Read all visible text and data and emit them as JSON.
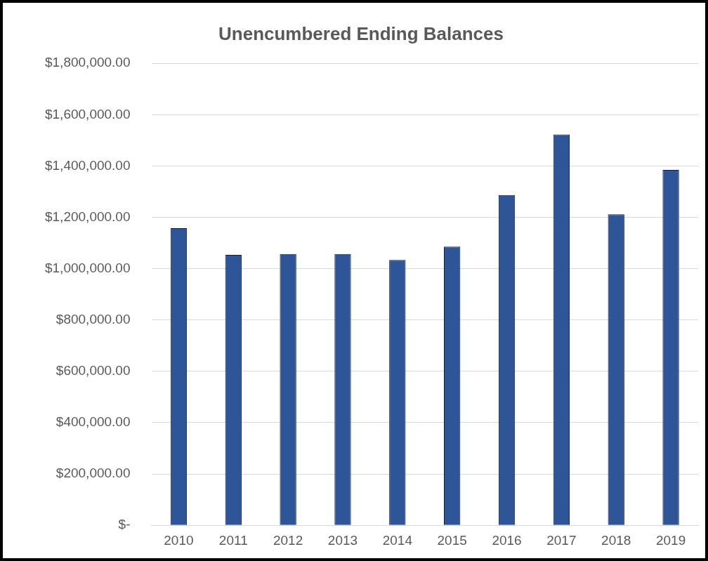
{
  "chart_data": {
    "type": "bar",
    "title": "Unencumbered Ending Balances",
    "categories": [
      "2010",
      "2011",
      "2012",
      "2013",
      "2014",
      "2015",
      "2016",
      "2017",
      "2018",
      "2019"
    ],
    "values": [
      1158000,
      1054000,
      1057000,
      1057000,
      1034000,
      1086000,
      1287000,
      1523000,
      1212000,
      1385000
    ],
    "color": "#2e5597",
    "ylim": [
      0,
      1800000
    ],
    "yticks": [
      {
        "value": 0,
        "label": "$-"
      },
      {
        "value": 200000,
        "label": "$200,000.00"
      },
      {
        "value": 400000,
        "label": "$400,000.00"
      },
      {
        "value": 600000,
        "label": "$600,000.00"
      },
      {
        "value": 800000,
        "label": "$800,000.00"
      },
      {
        "value": 1000000,
        "label": "$1,000,000.00"
      },
      {
        "value": 1200000,
        "label": "$1,200,000.00"
      },
      {
        "value": 1400000,
        "label": "$1,400,000.00"
      },
      {
        "value": 1600000,
        "label": "$1,600,000.00"
      },
      {
        "value": 1800000,
        "label": "$1,800,000.00"
      }
    ],
    "grid": "y",
    "legend": false
  }
}
